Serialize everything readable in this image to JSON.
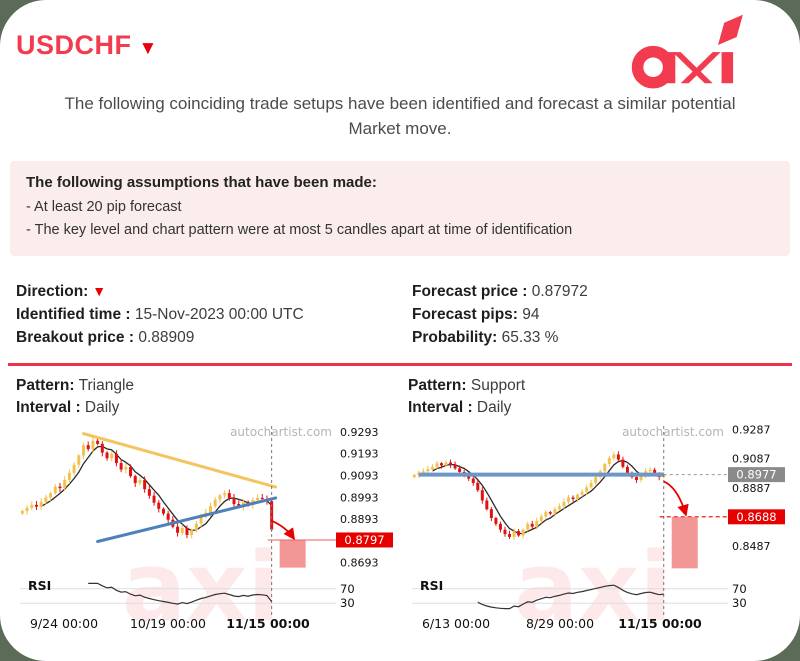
{
  "colors": {
    "brand": "#f23b4e",
    "rule_red": "#ee3048",
    "assumption_bg": "#fbedec"
  },
  "header": {
    "symbol": "USDCHF",
    "direction_arrow": "▼",
    "logo": "axi"
  },
  "intro": "The following coinciding trade setups have been identified and forecast a similar potential Market move.",
  "assumptions": {
    "title": "The following assumptions that have been made:",
    "items": [
      "- At least 20 pip forecast",
      "- The key level and chart pattern were at most 5 candles apart at time of identification"
    ]
  },
  "details": {
    "left": [
      {
        "label": "Direction:",
        "value": "▼",
        "value_class": "red-arrow"
      },
      {
        "label": "Identified time :",
        "value": "15-Nov-2023 00:00 UTC"
      },
      {
        "label": "Breakout price :",
        "value": "0.88909"
      }
    ],
    "right": [
      {
        "label": "Forecast price :",
        "value": "0.87972"
      },
      {
        "label": "Forecast pips:",
        "value": "94"
      },
      {
        "label": "Probability:",
        "value": "65.33 %"
      }
    ]
  },
  "chart_labels": {
    "pattern": "Pattern:",
    "interval": "Interval :"
  },
  "chart_data": [
    {
      "type": "candlestick",
      "pattern": "Triangle",
      "interval": "Daily",
      "watermark": "autochartist.com",
      "brand_watermark": "axi",
      "ylim": [
        0.865,
        0.932
      ],
      "y_ticks": [
        "0.9293",
        "0.9193",
        "0.9093",
        "0.8993",
        "0.8893",
        "0.8693"
      ],
      "x_ticks": [
        {
          "label": "9/24 00:00",
          "x": 48,
          "bold": false
        },
        {
          "label": "10/19 00:00",
          "x": 152,
          "bold": false
        },
        {
          "label": "11/15 00:00",
          "x": 252,
          "bold": true
        }
      ],
      "rsi_label": "RSI",
      "rsi_grid": [
        "70",
        "30"
      ],
      "first_open": 0.8918,
      "wick": 0.0018,
      "up_color": "#f2c24f",
      "down_color": "#e01111",
      "closes": [
        0.893,
        0.8945,
        0.8958,
        0.895,
        0.8972,
        0.8992,
        0.9012,
        0.9042,
        0.9035,
        0.9072,
        0.9105,
        0.9142,
        0.9185,
        0.9232,
        0.9214,
        0.9252,
        0.9238,
        0.9198,
        0.9172,
        0.9192,
        0.915,
        0.912,
        0.9132,
        0.909,
        0.9058,
        0.9072,
        0.903,
        0.9,
        0.8968,
        0.894,
        0.8918,
        0.889,
        0.8858,
        0.883,
        0.8852,
        0.882,
        0.8842,
        0.8872,
        0.8902,
        0.8922,
        0.8952,
        0.8982,
        0.9002,
        0.9012,
        0.899,
        0.8962,
        0.895,
        0.8972,
        0.8958,
        0.898,
        0.899,
        0.8985,
        0.8975,
        0.8845
      ],
      "trendlines": [
        {
          "i1": 13,
          "p1": 0.9285,
          "i2": 54,
          "p2": 0.904,
          "color": "#f3c55c"
        },
        {
          "i1": 16,
          "p1": 0.879,
          "i2": 54,
          "p2": 0.899,
          "color": "#4d80bd"
        }
      ],
      "levels": [],
      "forecast": {
        "price": 0.8797,
        "label": "0.8797",
        "label_bg": "#e60000",
        "line_color": "#f47c7c",
        "dashed": false,
        "box_top": 0.8797,
        "box_bottom": 0.867,
        "arrow_from": 0.8885,
        "arrow_to": 0.8805
      }
    },
    {
      "type": "candlestick",
      "pattern": "Support",
      "interval": "Daily",
      "watermark": "autochartist.com",
      "brand_watermark": "axi",
      "ylim": [
        0.831,
        0.931
      ],
      "y_ticks": [
        "0.9287",
        "0.9087",
        "0.8887",
        "0.8487"
      ],
      "x_ticks": [
        {
          "label": "6/13 00:00",
          "x": 48,
          "bold": false
        },
        {
          "label": "8/29 00:00",
          "x": 152,
          "bold": false
        },
        {
          "label": "11/15 00:00",
          "x": 252,
          "bold": true
        }
      ],
      "rsi_label": "RSI",
      "rsi_grid": [
        "70",
        "30"
      ],
      "first_open": 0.896,
      "wick": 0.0022,
      "up_color": "#f2c24f",
      "down_color": "#e01111",
      "closes": [
        0.8975,
        0.899,
        0.9,
        0.9015,
        0.903,
        0.9055,
        0.904,
        0.906,
        0.9045,
        0.902,
        0.8995,
        0.8975,
        0.895,
        0.892,
        0.887,
        0.88,
        0.874,
        0.868,
        0.864,
        0.86,
        0.857,
        0.855,
        0.859,
        0.856,
        0.86,
        0.864,
        0.862,
        0.866,
        0.869,
        0.872,
        0.871,
        0.874,
        0.876,
        0.879,
        0.882,
        0.881,
        0.884,
        0.886,
        0.889,
        0.892,
        0.896,
        0.9,
        0.905,
        0.909,
        0.9115,
        0.908,
        0.903,
        0.899,
        0.896,
        0.894,
        0.897,
        0.9,
        0.901,
        0.8985,
        0.896,
        0.8975
      ],
      "trendlines": [],
      "levels": [
        {
          "price": 0.8977,
          "label": "0.8977",
          "label_bg": "#8a8a8a",
          "color": "#6e96c8",
          "from_i": 1
        }
      ],
      "forecast": {
        "price": 0.8688,
        "label": "0.8688",
        "label_bg": "#e60000",
        "line_color": "#e60000",
        "dashed": true,
        "box_top": 0.8688,
        "box_bottom": 0.8335,
        "arrow_from": 0.893,
        "arrow_to": 0.8705
      }
    }
  ]
}
